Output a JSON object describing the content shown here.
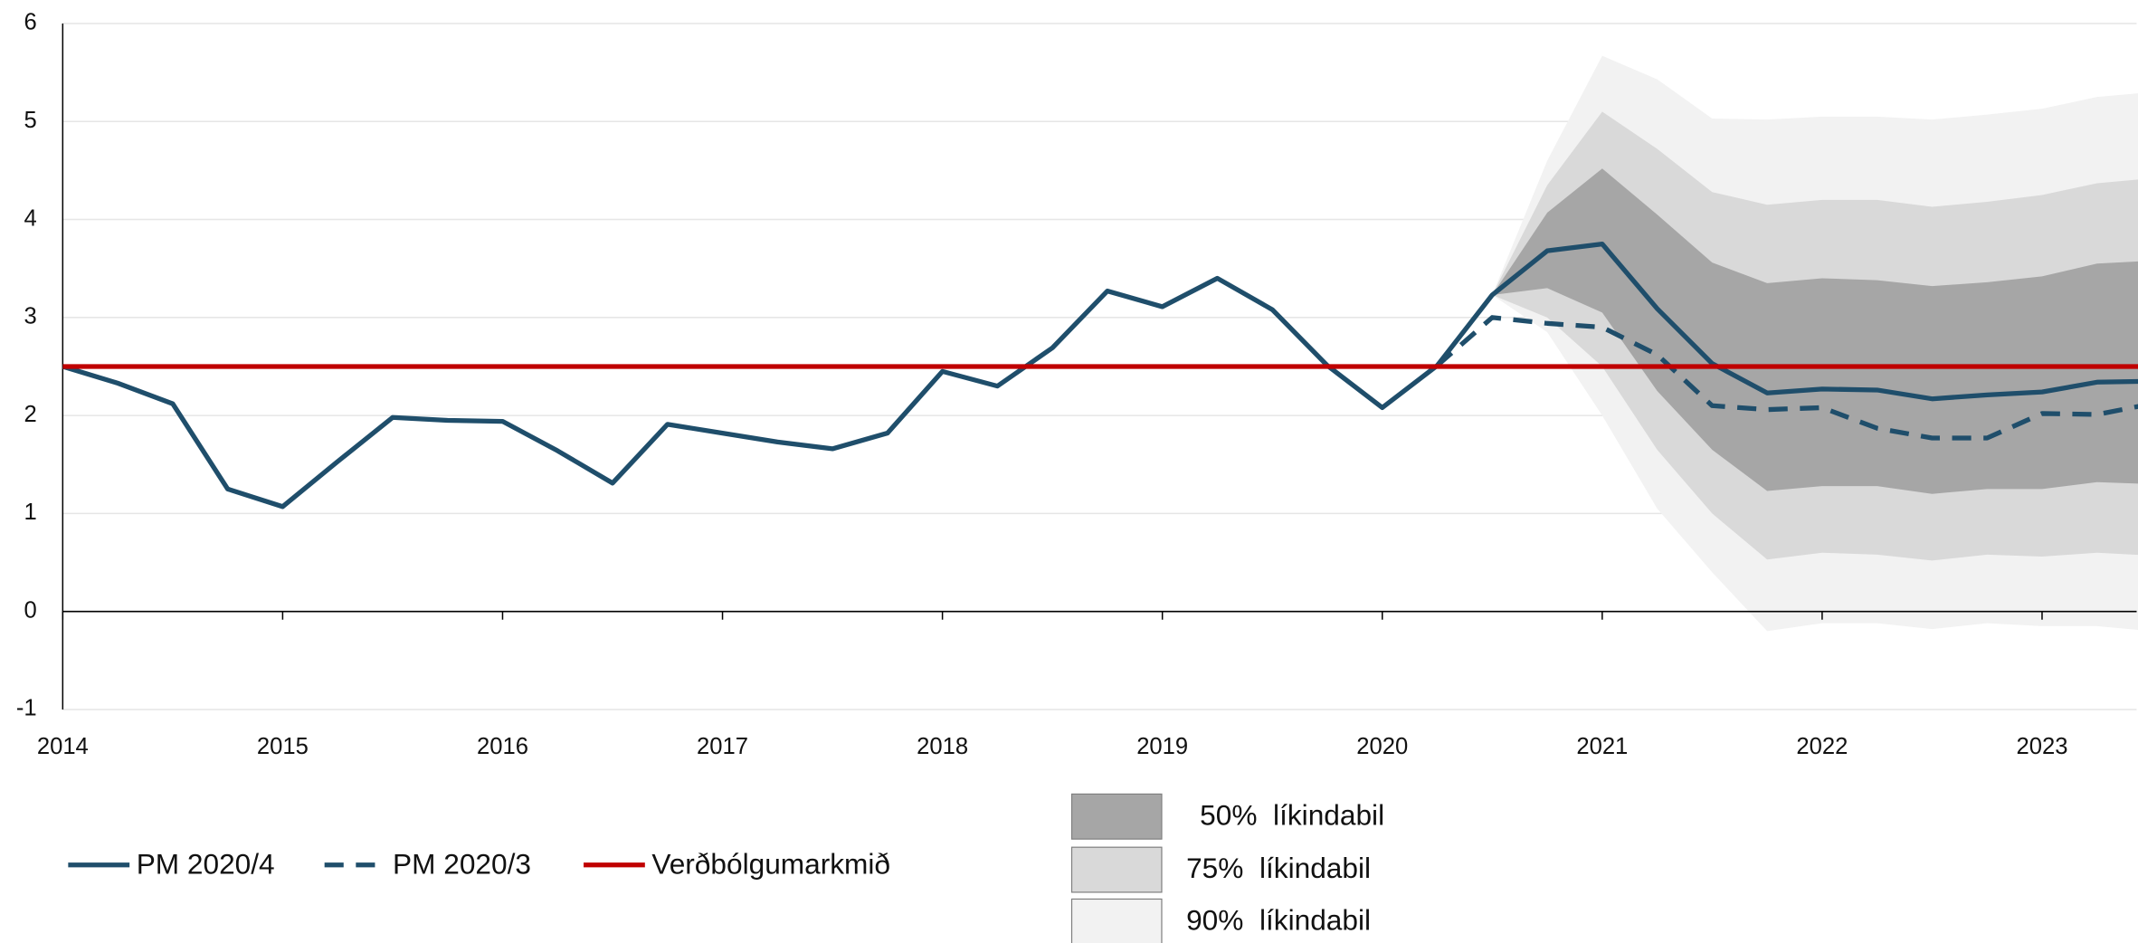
{
  "chart_data": {
    "type": "line",
    "xlim": [
      2014,
      2023.43
    ],
    "xticks": [
      2014,
      2015,
      2016,
      2017,
      2018,
      2019,
      2020,
      2021,
      2022,
      2023
    ],
    "ylim": [
      -1,
      6
    ],
    "yticks": [
      -1,
      0,
      1,
      2,
      3,
      4,
      5,
      6
    ],
    "grid": true,
    "fan_x": [
      2020.5,
      2020.75,
      2021,
      2021.25,
      2021.5,
      2021.75,
      2022,
      2022.25,
      2022.5,
      2022.75,
      2023,
      2023.25,
      2023.5
    ],
    "bands": [
      {
        "name": "90%  líkindabil",
        "color": "#f2f2f2",
        "upper": [
          3.23,
          4.6,
          5.67,
          5.43,
          5.03,
          5.02,
          5.05,
          5.05,
          5.02,
          5.07,
          5.13,
          5.25,
          5.3
        ],
        "lower": [
          3.23,
          2.85,
          2.0,
          1.05,
          0.4,
          -0.2,
          -0.12,
          -0.12,
          -0.18,
          -0.12,
          -0.15,
          -0.15,
          -0.2
        ]
      },
      {
        "name": "75%  líkindabil",
        "color": "#d9d9d9",
        "upper": [
          3.23,
          4.35,
          5.1,
          4.72,
          4.28,
          4.15,
          4.2,
          4.2,
          4.13,
          4.18,
          4.25,
          4.37,
          4.42
        ],
        "lower": [
          3.23,
          3.0,
          2.5,
          1.65,
          1.0,
          0.53,
          0.6,
          0.58,
          0.52,
          0.58,
          0.56,
          0.6,
          0.57
        ]
      },
      {
        "name": "50%  líkindabil",
        "color": "#a6a6a6",
        "upper": [
          3.23,
          4.07,
          4.52,
          4.05,
          3.56,
          3.35,
          3.4,
          3.38,
          3.32,
          3.36,
          3.42,
          3.55,
          3.58
        ],
        "lower": [
          3.23,
          3.3,
          3.05,
          2.25,
          1.65,
          1.23,
          1.28,
          1.28,
          1.2,
          1.25,
          1.25,
          1.32,
          1.3
        ]
      }
    ],
    "series": [
      {
        "name": "PM 2020/4",
        "color": "#1f4e6b",
        "dash": false,
        "x": [
          2014,
          2014.25,
          2014.5,
          2014.75,
          2015,
          2015.25,
          2015.5,
          2015.75,
          2016,
          2016.25,
          2016.5,
          2016.75,
          2017,
          2017.25,
          2017.5,
          2017.75,
          2018,
          2018.25,
          2018.5,
          2018.75,
          2019,
          2019.25,
          2019.5,
          2019.75,
          2020,
          2020.25,
          2020.5,
          2020.75,
          2021,
          2021.25,
          2021.5,
          2021.75,
          2022,
          2022.25,
          2022.5,
          2022.75,
          2023,
          2023.25,
          2023.5
        ],
        "values": [
          2.5,
          2.33,
          2.12,
          1.25,
          1.07,
          1.53,
          1.98,
          1.95,
          1.94,
          1.64,
          1.31,
          1.91,
          1.82,
          1.73,
          1.66,
          1.82,
          2.45,
          2.3,
          2.69,
          3.27,
          3.11,
          3.4,
          3.08,
          2.51,
          2.08,
          2.51,
          3.23,
          3.68,
          3.75,
          3.09,
          2.53,
          2.23,
          2.27,
          2.26,
          2.17,
          2.21,
          2.24,
          2.34,
          2.35
        ]
      },
      {
        "name": "PM 2020/3",
        "color": "#1f4e6b",
        "dash": true,
        "x": [
          2020.25,
          2020.5,
          2020.75,
          2021,
          2021.25,
          2021.5,
          2021.75,
          2022,
          2022.25,
          2022.5,
          2022.75,
          2023,
          2023.25,
          2023.5
        ],
        "values": [
          2.51,
          3.0,
          2.94,
          2.9,
          2.62,
          2.1,
          2.06,
          2.08,
          1.87,
          1.77,
          1.77,
          2.02,
          2.01,
          2.12
        ]
      },
      {
        "name": "Verðbólgumarkmið",
        "color": "#c00000",
        "dash": false,
        "x": [
          2014,
          2023.5
        ],
        "values": [
          2.5,
          2.5
        ]
      }
    ]
  }
}
